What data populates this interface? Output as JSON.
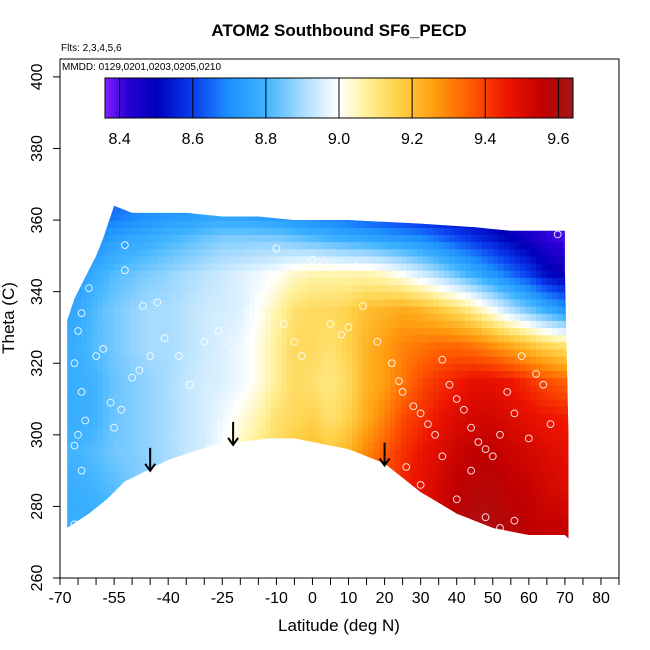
{
  "chart_data": {
    "type": "heatmap",
    "title": "ATOM2 Southbound SF6_PECD",
    "flights_label": "Flts: 2,3,4,5,6",
    "dates_label": "MMDD: 0129,0201,0203,0205,0210",
    "xlabel": "Latitude (deg N)",
    "ylabel": "Theta (C)",
    "xlim": [
      -70,
      85
    ],
    "ylim": [
      260,
      405
    ],
    "x_ticks": [
      -70,
      -55,
      -40,
      -25,
      -10,
      0,
      10,
      20,
      30,
      40,
      50,
      60,
      70,
      80
    ],
    "x_minor_ticks": [
      -65,
      -60,
      -50,
      -45,
      -35,
      -30,
      -20,
      -15,
      -5,
      5,
      15,
      25,
      35,
      45,
      55,
      65,
      75,
      85
    ],
    "y_ticks": [
      260,
      280,
      300,
      320,
      340,
      360,
      380,
      400
    ],
    "colorbar": {
      "range": [
        8.36,
        9.64
      ],
      "ticks": [
        8.4,
        8.6,
        8.8,
        9.0,
        9.2,
        9.4,
        9.6
      ],
      "tick_labels": [
        "8.4",
        "8.6",
        "8.8",
        "9.0",
        "9.2",
        "9.4",
        "9.6"
      ],
      "stops": [
        {
          "v": 8.36,
          "c": "#7f22ff"
        },
        {
          "v": 8.42,
          "c": "#2a00d6"
        },
        {
          "v": 8.5,
          "c": "#0000b8"
        },
        {
          "v": 8.6,
          "c": "#0a3cf0"
        },
        {
          "v": 8.7,
          "c": "#1e90ff"
        },
        {
          "v": 8.8,
          "c": "#40b4ff"
        },
        {
          "v": 8.9,
          "c": "#a8dcff"
        },
        {
          "v": 9.0,
          "c": "#ffffff"
        },
        {
          "v": 9.07,
          "c": "#fff3a0"
        },
        {
          "v": 9.16,
          "c": "#ffd24a"
        },
        {
          "v": 9.26,
          "c": "#ff9f10"
        },
        {
          "v": 9.36,
          "c": "#ff5a00"
        },
        {
          "v": 9.46,
          "c": "#ee1400"
        },
        {
          "v": 9.56,
          "c": "#c00000"
        },
        {
          "v": 9.64,
          "c": "#a01818"
        }
      ]
    },
    "field_grid": {
      "lat": [
        -66,
        -60,
        -55,
        -50,
        -45,
        -40,
        -35,
        -30,
        -25,
        -20,
        -15,
        -10,
        -5,
        0,
        5,
        10,
        15,
        20,
        25,
        30,
        35,
        40,
        45,
        50,
        55,
        60,
        65,
        70
      ],
      "theta": [
        275,
        285,
        295,
        305,
        315,
        325,
        335,
        345,
        355,
        362
      ],
      "values": [
        [
          8.78,
          8.78,
          8.8,
          8.82,
          8.86,
          8.9,
          8.93,
          8.95,
          8.98,
          9.0,
          9.04,
          9.1,
          9.15,
          9.18,
          9.2,
          9.24,
          9.3,
          9.36,
          9.42,
          9.48,
          9.55,
          9.58,
          9.6,
          9.6,
          9.58,
          9.56,
          9.55,
          9.55
        ],
        [
          8.78,
          8.8,
          8.82,
          8.85,
          8.88,
          8.9,
          8.92,
          8.95,
          8.98,
          9.0,
          9.05,
          9.1,
          9.15,
          9.18,
          9.2,
          9.25,
          9.32,
          9.38,
          9.44,
          9.48,
          9.52,
          9.56,
          9.58,
          9.58,
          9.56,
          9.55,
          9.52,
          9.5
        ],
        [
          8.8,
          8.82,
          8.85,
          8.86,
          8.88,
          8.9,
          8.93,
          8.95,
          9.0,
          9.05,
          9.1,
          9.14,
          9.18,
          9.2,
          9.18,
          9.22,
          9.3,
          9.36,
          9.42,
          9.46,
          9.5,
          9.54,
          9.56,
          9.56,
          9.54,
          9.52,
          9.5,
          9.48
        ],
        [
          8.78,
          8.8,
          8.84,
          8.86,
          8.88,
          8.9,
          8.93,
          8.95,
          8.98,
          9.02,
          9.06,
          9.12,
          9.14,
          9.16,
          9.12,
          9.16,
          9.24,
          9.3,
          9.38,
          9.42,
          9.46,
          9.5,
          9.52,
          9.52,
          9.5,
          9.48,
          9.46,
          9.45
        ],
        [
          8.78,
          8.8,
          8.84,
          8.86,
          8.88,
          8.9,
          8.93,
          8.95,
          8.96,
          8.98,
          9.02,
          9.08,
          9.14,
          9.12,
          9.1,
          9.14,
          9.22,
          9.26,
          9.32,
          9.38,
          9.42,
          9.45,
          9.48,
          9.48,
          9.46,
          9.42,
          9.38,
          9.35
        ],
        [
          8.78,
          8.82,
          8.85,
          8.88,
          8.9,
          8.9,
          8.92,
          8.94,
          8.96,
          8.98,
          9.02,
          9.08,
          9.14,
          9.14,
          9.12,
          9.16,
          9.22,
          9.26,
          9.3,
          9.32,
          9.34,
          9.34,
          9.32,
          9.28,
          9.24,
          9.2,
          9.15,
          9.12
        ],
        [
          8.76,
          8.82,
          8.85,
          8.88,
          8.9,
          8.9,
          8.92,
          8.94,
          8.95,
          8.96,
          9.0,
          9.06,
          9.12,
          9.14,
          9.14,
          9.16,
          9.2,
          9.22,
          9.24,
          9.22,
          9.18,
          9.14,
          9.08,
          9.0,
          8.92,
          8.85,
          8.78,
          8.72
        ],
        [
          8.72,
          8.78,
          8.82,
          8.84,
          8.86,
          8.88,
          8.9,
          8.92,
          8.94,
          8.96,
          8.98,
          9.0,
          9.04,
          9.06,
          9.06,
          9.06,
          9.06,
          9.04,
          9.0,
          8.95,
          8.9,
          8.84,
          8.78,
          8.72,
          8.66,
          8.6,
          8.52,
          8.48
        ],
        [
          8.66,
          8.7,
          8.74,
          8.76,
          8.78,
          8.8,
          8.82,
          8.84,
          8.86,
          8.86,
          8.86,
          8.86,
          8.84,
          8.82,
          8.8,
          8.78,
          8.76,
          8.74,
          8.72,
          8.7,
          8.66,
          8.62,
          8.58,
          8.54,
          8.5,
          8.46,
          8.42,
          8.4
        ],
        [
          8.62,
          8.64,
          8.66,
          8.68,
          8.7,
          8.72,
          8.72,
          8.74,
          8.74,
          8.74,
          8.72,
          8.7,
          8.68,
          8.66,
          8.64,
          8.62,
          8.6,
          8.58,
          8.56,
          8.54,
          8.52,
          8.5,
          8.48,
          8.46,
          8.44,
          8.42,
          8.4,
          8.38
        ]
      ]
    },
    "domain_lower_boundary": [
      [
        -68,
        274
      ],
      [
        -62,
        278
      ],
      [
        -57,
        282
      ],
      [
        -52,
        287
      ],
      [
        -46,
        290
      ],
      [
        -40,
        293
      ],
      [
        -34,
        295
      ],
      [
        -28,
        297
      ],
      [
        -20,
        298
      ],
      [
        -12,
        299
      ],
      [
        -5,
        299
      ],
      [
        0,
        298
      ],
      [
        5,
        297
      ],
      [
        10,
        296
      ],
      [
        15,
        294
      ],
      [
        20,
        292
      ],
      [
        25,
        288
      ],
      [
        30,
        284
      ],
      [
        35,
        281
      ],
      [
        40,
        278
      ],
      [
        45,
        276
      ],
      [
        50,
        274
      ],
      [
        55,
        273
      ],
      [
        60,
        272
      ],
      [
        65,
        272
      ],
      [
        70,
        272
      ],
      [
        71,
        271
      ]
    ],
    "domain_upper_boundary": [
      [
        -68,
        332
      ],
      [
        -66,
        338
      ],
      [
        -63,
        344
      ],
      [
        -60,
        350
      ],
      [
        -58,
        355
      ],
      [
        -56,
        361
      ],
      [
        -55,
        364
      ],
      [
        -50,
        362
      ],
      [
        -45,
        362
      ],
      [
        -40,
        362
      ],
      [
        -35,
        362
      ],
      [
        -25,
        361
      ],
      [
        -15,
        361
      ],
      [
        -5,
        360
      ],
      [
        10,
        360
      ],
      [
        30,
        359
      ],
      [
        45,
        358
      ],
      [
        55,
        357
      ],
      [
        65,
        357
      ],
      [
        70,
        357
      ],
      [
        70,
        346
      ],
      [
        71,
        300
      ],
      [
        71,
        272
      ]
    ],
    "observations": [
      [
        -66,
        275
      ],
      [
        -64,
        290
      ],
      [
        -66,
        297
      ],
      [
        -65,
        300
      ],
      [
        -63,
        304
      ],
      [
        -64,
        312
      ],
      [
        -66,
        320
      ],
      [
        -65,
        329
      ],
      [
        -64,
        334
      ],
      [
        -62,
        341
      ],
      [
        -60,
        322
      ],
      [
        -58,
        324
      ],
      [
        -55,
        302
      ],
      [
        -56,
        309
      ],
      [
        -53,
        307
      ],
      [
        -50,
        316
      ],
      [
        -48,
        318
      ],
      [
        -45,
        322
      ],
      [
        -52,
        346
      ],
      [
        -52,
        353
      ],
      [
        -47,
        336
      ],
      [
        -43,
        337
      ],
      [
        -41,
        327
      ],
      [
        -37,
        322
      ],
      [
        -34,
        314
      ],
      [
        -30,
        326
      ],
      [
        -26,
        329
      ],
      [
        -22,
        323
      ],
      [
        -18,
        334
      ],
      [
        -15,
        338
      ],
      [
        -12,
        345
      ],
      [
        -10,
        352
      ],
      [
        -8,
        331
      ],
      [
        -5,
        326
      ],
      [
        -3,
        322
      ],
      [
        0,
        349
      ],
      [
        3,
        348
      ],
      [
        5,
        331
      ],
      [
        8,
        328
      ],
      [
        10,
        330
      ],
      [
        12,
        347
      ],
      [
        14,
        336
      ],
      [
        18,
        326
      ],
      [
        20,
        290
      ],
      [
        22,
        320
      ],
      [
        24,
        315
      ],
      [
        25,
        312
      ],
      [
        28,
        308
      ],
      [
        30,
        306
      ],
      [
        32,
        303
      ],
      [
        34,
        300
      ],
      [
        36,
        321
      ],
      [
        38,
        314
      ],
      [
        40,
        310
      ],
      [
        42,
        307
      ],
      [
        44,
        302
      ],
      [
        46,
        298
      ],
      [
        48,
        296
      ],
      [
        50,
        294
      ],
      [
        52,
        300
      ],
      [
        54,
        312
      ],
      [
        56,
        306
      ],
      [
        58,
        322
      ],
      [
        60,
        299
      ],
      [
        62,
        317
      ],
      [
        64,
        314
      ],
      [
        66,
        303
      ],
      [
        68,
        356
      ],
      [
        36,
        294
      ],
      [
        40,
        282
      ],
      [
        44,
        290
      ],
      [
        48,
        277
      ],
      [
        52,
        274
      ],
      [
        56,
        276
      ],
      [
        26,
        291
      ],
      [
        30,
        286
      ]
    ],
    "arrows": [
      -45,
      -22,
      20
    ]
  }
}
